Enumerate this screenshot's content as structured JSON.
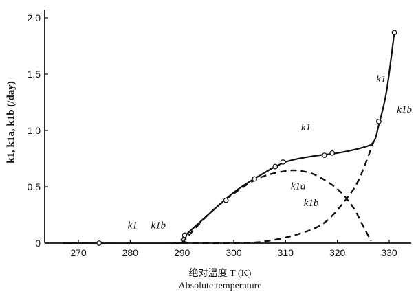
{
  "chart_data": {
    "type": "line",
    "title": "",
    "xlabel_cn": "绝对温度 T (K)",
    "xlabel_en": "Absolute temperature",
    "ylabel": "k1, k1a, k1b (/day)",
    "xlim": [
      267,
      333
    ],
    "ylim": [
      0,
      2.1
    ],
    "xticks": [
      "270",
      "280",
      "290",
      "300",
      "310",
      "320",
      "330"
    ],
    "yticks": [
      "0",
      "0.5",
      "1.0",
      "1.5",
      "2.0"
    ],
    "grid": false,
    "series": [
      {
        "name": "k1",
        "style": "solid",
        "points": [
          [
            267,
            0
          ],
          [
            289.5,
            0
          ],
          [
            290,
            0.04
          ],
          [
            295,
            0.25
          ],
          [
            300,
            0.45
          ],
          [
            305,
            0.6
          ],
          [
            310,
            0.72
          ],
          [
            315,
            0.77
          ],
          [
            320,
            0.8
          ],
          [
            325,
            0.85
          ],
          [
            327,
            0.9
          ],
          [
            328,
            1.05
          ],
          [
            329.5,
            1.35
          ],
          [
            331,
            1.87
          ]
        ]
      },
      {
        "name": "k1a",
        "style": "dashed",
        "points": [
          [
            290,
            0
          ],
          [
            295,
            0.25
          ],
          [
            300,
            0.44
          ],
          [
            305,
            0.58
          ],
          [
            310,
            0.64
          ],
          [
            313,
            0.64
          ],
          [
            316,
            0.6
          ],
          [
            320,
            0.48
          ],
          [
            323,
            0.32
          ],
          [
            325,
            0.15
          ],
          [
            326.5,
            0.02
          ]
        ]
      },
      {
        "name": "k1b",
        "style": "dashed",
        "points": [
          [
            290,
            0
          ],
          [
            300,
            0
          ],
          [
            305,
            0.01
          ],
          [
            310,
            0.05
          ],
          [
            315,
            0.12
          ],
          [
            318,
            0.2
          ],
          [
            321,
            0.35
          ],
          [
            324,
            0.55
          ],
          [
            327,
            0.9
          ]
        ]
      }
    ],
    "observed_points": [
      [
        274,
        0
      ],
      [
        290.5,
        0.07
      ],
      [
        298.5,
        0.38
      ],
      [
        304,
        0.57
      ],
      [
        308,
        0.68
      ],
      [
        309.5,
        0.72
      ],
      [
        317.5,
        0.78
      ],
      [
        319,
        0.8
      ],
      [
        328,
        1.08
      ],
      [
        331,
        1.87
      ]
    ],
    "labels": [
      {
        "text": "k1",
        "sub": "",
        "x": 327.5,
        "y": 1.43,
        "series": "k1"
      },
      {
        "text": "k1b",
        "sub": "",
        "x": 331.5,
        "y": 1.16,
        "series": "k1b"
      },
      {
        "text": "k1",
        "sub": "",
        "x": 313,
        "y": 1.0,
        "series": "k1"
      },
      {
        "text": "k1a",
        "sub": "",
        "x": 311,
        "y": 0.48,
        "series": "k1a"
      },
      {
        "text": "k1b",
        "sub": "",
        "x": 313.5,
        "y": 0.33,
        "series": "k1b"
      },
      {
        "text": "k1",
        "sub": "",
        "x": 279.5,
        "y": 0.13,
        "series": "k1"
      },
      {
        "text": "k1b",
        "sub": "",
        "x": 284,
        "y": 0.13,
        "series": "k1b"
      }
    ]
  },
  "colors": {
    "ink": "#111111",
    "background": "#ffffff"
  }
}
